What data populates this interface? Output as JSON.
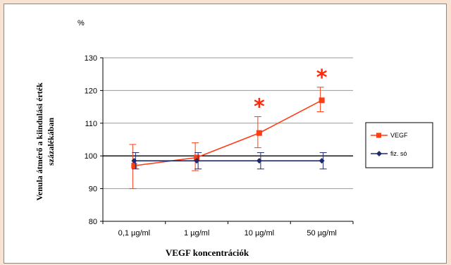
{
  "chart_data": {
    "type": "line",
    "categories": [
      "0,1 µg/ml",
      "1 µg/ml",
      "10 µg/ml",
      "50 µg/ml"
    ],
    "series": [
      {
        "name": "VEGF",
        "color": "#ff3c14",
        "marker": "square",
        "values": [
          97,
          99.5,
          107,
          117
        ],
        "error": [
          [
            90,
            103.5
          ],
          [
            95.5,
            104
          ],
          [
            102.5,
            112
          ],
          [
            113.5,
            121
          ]
        ]
      },
      {
        "name": "fiz. só",
        "color": "#1f2a6e",
        "marker": "diamond",
        "values": [
          98.5,
          98.5,
          98.5,
          98.5
        ],
        "error": [
          [
            96,
            101
          ],
          [
            96,
            101
          ],
          [
            96,
            101
          ],
          [
            96,
            101
          ]
        ]
      }
    ],
    "significance_marks": [
      {
        "category_index": 2,
        "text": "*",
        "color": "#ff2a0a"
      },
      {
        "category_index": 3,
        "text": "*",
        "color": "#ff2a0a"
      }
    ],
    "y_unit": "%",
    "ylabel_line1": "Venula átmérő a kiindulási érték",
    "ylabel_line2": "százalékában",
    "xlabel": "VEGF koncentrációk",
    "ylim": [
      80,
      130
    ],
    "yticks": [
      80,
      90,
      100,
      110,
      120,
      130
    ],
    "grid": true,
    "legend_position": "right"
  }
}
